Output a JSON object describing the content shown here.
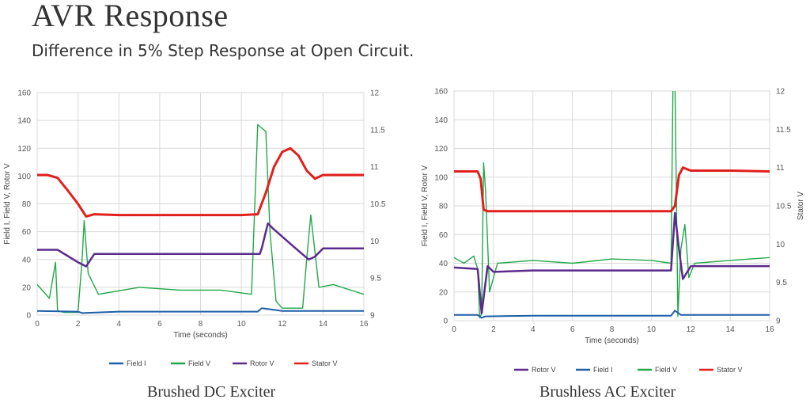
{
  "header": {
    "title": "AVR Response",
    "subtitle": "Difference in 5% Step Response at Open Circuit."
  },
  "captions": {
    "left": "Brushed DC Exciter",
    "right": "Brushless AC Exciter"
  },
  "colors": {
    "field_i": "#1f5fa8",
    "field_v": "#22a848",
    "rotor_v": "#5b2a8c",
    "stator_v": "#e0201c",
    "grid": "#d9d9d9"
  },
  "chart_data": [
    {
      "type": "line",
      "title": "Brushed DC Exciter",
      "xlabel": "Time (seconds)",
      "ylabel": "Field I, Field V, Rotor V",
      "y2label": "",
      "xlim": [
        0,
        16
      ],
      "ylim": [
        0,
        160
      ],
      "y2lim": [
        9,
        12
      ],
      "x_ticks": [
        "0",
        "2",
        "4",
        "6",
        "8",
        "10",
        "12",
        "14",
        "16"
      ],
      "y_ticks": [
        "0",
        "20",
        "40",
        "60",
        "80",
        "100",
        "120",
        "140",
        "160"
      ],
      "y2_ticks": [
        "9",
        "9.5",
        "10",
        "10.5",
        "11",
        "11.5",
        "12"
      ],
      "grid": true,
      "legend_position": "bottom",
      "legend": [
        "Field I",
        "Field V",
        "Rotor V",
        "Stator V"
      ],
      "series": [
        {
          "name": "Field I",
          "axis": "left",
          "color_key": "field_i",
          "x": [
            0,
            2,
            2.2,
            4,
            8,
            10.8,
            11.0,
            11.5,
            12,
            13.5,
            16
          ],
          "y": [
            3,
            2.5,
            1.5,
            2.5,
            2.5,
            2.5,
            5,
            4,
            3,
            3,
            3
          ]
        },
        {
          "name": "Field V",
          "axis": "left",
          "color_key": "field_v",
          "x": [
            0,
            0.6,
            0.9,
            1.0,
            1.3,
            2.0,
            2.2,
            2.3,
            2.5,
            3,
            5,
            7,
            9,
            10.5,
            10.8,
            11.2,
            11.4,
            11.7,
            12,
            13,
            13.2,
            13.4,
            13.8,
            14.5,
            16
          ],
          "y": [
            22,
            12,
            38,
            3,
            2,
            2,
            40,
            68,
            30,
            15,
            20,
            18,
            18,
            15,
            137,
            132,
            60,
            10,
            5,
            5,
            40,
            72,
            20,
            22,
            15
          ]
        },
        {
          "name": "Rotor V",
          "axis": "left",
          "color_key": "rotor_v",
          "x": [
            0,
            1,
            2,
            2.4,
            2.8,
            4,
            6,
            8,
            10,
            10.9,
            11.0,
            11.3,
            11.5,
            12.5,
            13.3,
            13.6,
            14,
            16
          ],
          "y": [
            47,
            47,
            38,
            35,
            44,
            44,
            44,
            44,
            44,
            44,
            48,
            66,
            63,
            50,
            40,
            42,
            48,
            48
          ]
        },
        {
          "name": "Stator V",
          "axis": "right",
          "color_key": "stator_v",
          "x": [
            0,
            0.5,
            1,
            1.5,
            2,
            2.4,
            2.8,
            4,
            6,
            8,
            10,
            10.8,
            11.2,
            11.6,
            12,
            12.4,
            12.8,
            13.2,
            13.6,
            14,
            16
          ],
          "y": [
            10.89,
            10.89,
            10.85,
            10.68,
            10.5,
            10.33,
            10.36,
            10.35,
            10.35,
            10.35,
            10.35,
            10.36,
            10.65,
            11.0,
            11.2,
            11.25,
            11.15,
            10.95,
            10.84,
            10.89,
            10.89
          ]
        }
      ]
    },
    {
      "type": "line",
      "title": "Brushless AC Exciter",
      "xlabel": "Time (seconds)",
      "ylabel": "Field I, Field V, Rotor V",
      "y2label": "Stator V",
      "xlim": [
        0,
        16
      ],
      "ylim": [
        0,
        160
      ],
      "y2lim": [
        9,
        12
      ],
      "x_ticks": [
        "0",
        "2",
        "4",
        "6",
        "8",
        "10",
        "12",
        "14",
        "16"
      ],
      "y_ticks": [
        "0",
        "20",
        "40",
        "60",
        "80",
        "100",
        "120",
        "140",
        "160"
      ],
      "y2_ticks": [
        "9",
        "9.5",
        "10",
        "10.5",
        "11",
        "11.5",
        "12"
      ],
      "grid": true,
      "legend_position": "bottom",
      "legend": [
        "Rotor V",
        "Field I",
        "Field V",
        "Stator V"
      ],
      "series": [
        {
          "name": "Rotor V",
          "axis": "left",
          "color_key": "rotor_v",
          "x": [
            0,
            1.2,
            1.4,
            1.7,
            2.0,
            4,
            8,
            11.0,
            11.2,
            11.4,
            11.6,
            12.0,
            14,
            16
          ],
          "y": [
            37,
            36,
            5,
            38,
            34,
            35,
            35,
            35,
            75,
            50,
            29,
            38,
            38,
            38
          ]
        },
        {
          "name": "Field I",
          "axis": "left",
          "color_key": "field_i",
          "x": [
            0,
            1.2,
            1.4,
            1.6,
            4,
            8,
            11.0,
            11.2,
            11.5,
            14,
            16
          ],
          "y": [
            4,
            4,
            2,
            3,
            3.5,
            3.5,
            3.5,
            7,
            4,
            4,
            4
          ]
        },
        {
          "name": "Field V",
          "axis": "left",
          "color_key": "field_v",
          "x": [
            0,
            0.5,
            1.0,
            1.2,
            1.3,
            1.4,
            1.5,
            1.6,
            1.8,
            2.2,
            4,
            6,
            8,
            10,
            11.0,
            11.1,
            11.2,
            11.35,
            11.5,
            11.7,
            11.9,
            12.2,
            14,
            16
          ],
          "y": [
            44,
            40,
            45,
            36,
            2,
            5,
            110,
            90,
            20,
            40,
            42,
            40,
            43,
            42,
            40,
            165,
            165,
            3,
            50,
            67,
            30,
            40,
            42,
            44
          ]
        },
        {
          "name": "Stator V",
          "axis": "right",
          "color_key": "stator_v",
          "x": [
            0,
            1.2,
            1.35,
            1.5,
            1.7,
            4,
            8,
            11.0,
            11.2,
            11.4,
            11.6,
            12.0,
            14,
            16
          ],
          "y": [
            10.95,
            10.95,
            10.85,
            10.45,
            10.43,
            10.43,
            10.43,
            10.43,
            10.5,
            10.9,
            11.0,
            10.96,
            10.96,
            10.95
          ]
        }
      ]
    }
  ]
}
